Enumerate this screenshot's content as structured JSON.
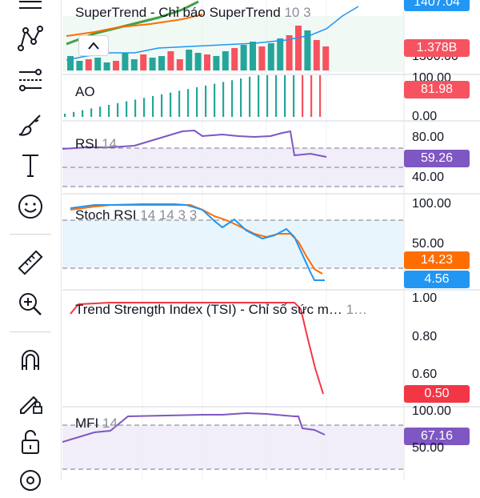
{
  "toolbar": {
    "tools": [
      {
        "name": "trend-line-icon"
      },
      {
        "name": "pattern-icon"
      },
      {
        "name": "fib-retracement-icon"
      },
      {
        "name": "brush-icon"
      },
      {
        "name": "text-tool-icon"
      },
      {
        "name": "emoji-icon"
      },
      {
        "name": "ruler-icon"
      },
      {
        "name": "zoom-in-icon"
      },
      {
        "name": "magnet-icon"
      },
      {
        "name": "lock-drawing-icon"
      },
      {
        "name": "unlock-icon"
      },
      {
        "name": "eye-icon"
      }
    ]
  },
  "panes": {
    "supertrend": {
      "label": "SuperTrend - Chỉ báo SuperTrend",
      "params": "10 3",
      "axis_partial_top": "1407.04",
      "volume_badge": "1.378B",
      "axis_partial_low": "1300.00"
    },
    "ao": {
      "label": "AO",
      "axis_top_partial": "100.00",
      "axis_bottom": "0.00",
      "badge": "81.98"
    },
    "rsi": {
      "label": "RSI",
      "params": "14",
      "axis_top": "80.00",
      "axis_bottom": "40.00",
      "badge": "59.26"
    },
    "stoch": {
      "label": "Stoch RSI",
      "params": "14 14 3 3",
      "axis_top": "100.00",
      "axis_mid": "50.00",
      "badge_k": "14.23",
      "badge_d": "4.56"
    },
    "tsi": {
      "label": "Trend Strength Index (TSI) - Chỉ số sức m…",
      "params": "1…",
      "axis_top": "1.00",
      "axis_mid": "0.80",
      "axis_low": "0.60",
      "badge": "0.50"
    },
    "mfi": {
      "label": "MFI",
      "params": "14",
      "axis_top": "100.00",
      "axis_bottom": "50.00",
      "badge": "67.16"
    }
  },
  "colors": {
    "up": "#26a69a",
    "down": "#f7525f",
    "purple": "#7e57c2",
    "blue": "#2196f3",
    "orange": "#ff6d00",
    "tsi": "#f23645"
  }
}
